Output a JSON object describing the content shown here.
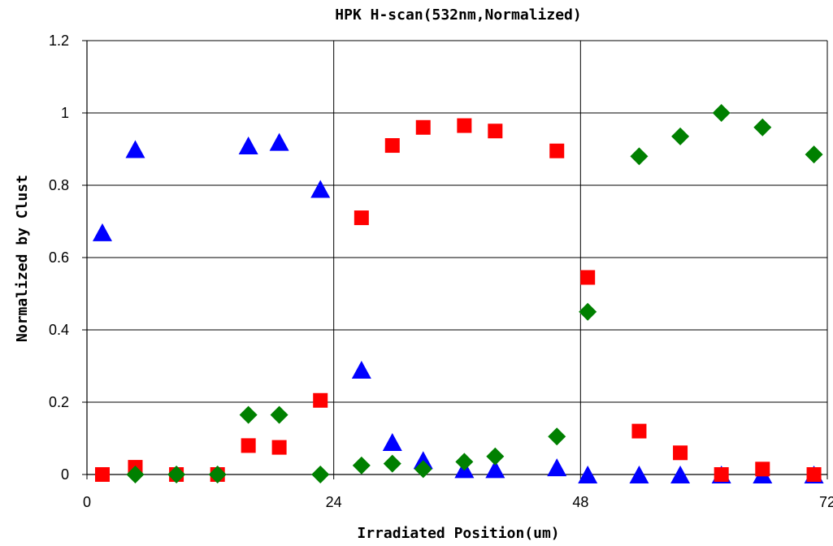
{
  "chart_data": {
    "type": "scatter",
    "title": "HPK H-scan(532nm,Normalized)",
    "xlabel": "Irradiated Position(um)",
    "ylabel": "Normalized by Clust",
    "xlim": [
      0,
      72
    ],
    "ylim": [
      0,
      1.2
    ],
    "x_ticks": [
      "0",
      "24",
      "48",
      "72"
    ],
    "y_ticks": [
      "0",
      "0.2",
      "0.4",
      "0.6",
      "0.8",
      "1",
      "1.2"
    ],
    "grid": true,
    "legend": "none",
    "series": [
      {
        "marker": "triangle",
        "color": "#0000ff",
        "points": [
          [
            1.5,
            0.67
          ],
          [
            4.7,
            0.9
          ],
          [
            15.7,
            0.91
          ],
          [
            18.7,
            0.92
          ],
          [
            22.7,
            0.79
          ],
          [
            26.7,
            0.29
          ],
          [
            29.7,
            0.09
          ],
          [
            32.7,
            0.04
          ],
          [
            36.7,
            0.015
          ],
          [
            39.7,
            0.015
          ],
          [
            45.7,
            0.02
          ],
          [
            48.7,
            0.0
          ],
          [
            53.7,
            0.0
          ],
          [
            57.7,
            0.0
          ],
          [
            61.7,
            0.0
          ],
          [
            65.7,
            0.0
          ],
          [
            70.7,
            0.0
          ]
        ]
      },
      {
        "marker": "square",
        "color": "#ff0000",
        "points": [
          [
            1.5,
            0.0
          ],
          [
            4.7,
            0.02
          ],
          [
            8.7,
            0.0
          ],
          [
            12.7,
            0.0
          ],
          [
            15.7,
            0.08
          ],
          [
            18.7,
            0.075
          ],
          [
            22.7,
            0.205
          ],
          [
            26.7,
            0.71
          ],
          [
            29.7,
            0.91
          ],
          [
            32.7,
            0.96
          ],
          [
            36.7,
            0.965
          ],
          [
            39.7,
            0.95
          ],
          [
            45.7,
            0.895
          ],
          [
            48.7,
            0.545
          ],
          [
            53.7,
            0.12
          ],
          [
            57.7,
            0.06
          ],
          [
            61.7,
            0.0
          ],
          [
            65.7,
            0.015
          ],
          [
            70.7,
            0.0
          ]
        ]
      },
      {
        "marker": "diamond",
        "color": "#008000",
        "points": [
          [
            4.7,
            0.0
          ],
          [
            8.7,
            0.0
          ],
          [
            12.7,
            0.0
          ],
          [
            15.7,
            0.165
          ],
          [
            18.7,
            0.165
          ],
          [
            22.7,
            0.0
          ],
          [
            26.7,
            0.025
          ],
          [
            29.7,
            0.03
          ],
          [
            32.7,
            0.015
          ],
          [
            36.7,
            0.035
          ],
          [
            39.7,
            0.05
          ],
          [
            45.7,
            0.105
          ],
          [
            48.7,
            0.45
          ],
          [
            53.7,
            0.88
          ],
          [
            57.7,
            0.935
          ],
          [
            61.7,
            1.0
          ],
          [
            65.7,
            0.96
          ],
          [
            70.7,
            0.885
          ]
        ]
      }
    ]
  }
}
